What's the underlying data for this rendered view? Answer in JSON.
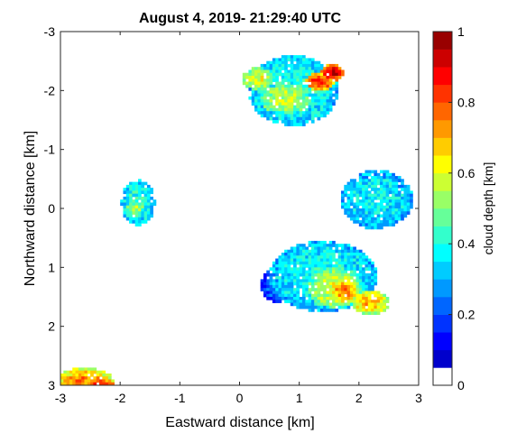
{
  "chart_data": {
    "type": "heatmap",
    "title": "August 4, 2019- 21:29:40 UTC",
    "xlabel": "Eastward distance [km]",
    "ylabel": "Northward distance [km]",
    "xlim": [
      -3,
      3
    ],
    "ylim": [
      -3,
      3
    ],
    "y_axis_reversed": true,
    "grid": false,
    "x_ticks": [
      "-3",
      "-2",
      "-1",
      "0",
      "1",
      "2",
      "3"
    ],
    "y_ticks": [
      "-3",
      "-2",
      "-1",
      "0",
      "1",
      "2",
      "3"
    ],
    "x_tick_values": [
      -3,
      -2,
      -1,
      0,
      1,
      2,
      3
    ],
    "y_tick_values": [
      -3,
      -2,
      -1,
      0,
      1,
      2,
      3
    ],
    "colorbar": {
      "label": "cloud depth [km]",
      "min": 0,
      "max": 1,
      "ticks": [
        "0",
        "0.2",
        "0.4",
        "0.6",
        "0.8",
        "1"
      ],
      "tick_values": [
        0,
        0.2,
        0.4,
        0.6,
        0.8,
        1
      ],
      "levels": 20,
      "colormap": "jet",
      "zero_color": "#ffffff"
    },
    "cloud_cells": [
      {
        "x": 0.9,
        "y": -2.0,
        "rx": 0.75,
        "ry": 0.6,
        "depth": 0.42
      },
      {
        "x": 0.75,
        "y": -1.85,
        "rx": 0.4,
        "ry": 0.25,
        "depth": 0.58
      },
      {
        "x": 0.3,
        "y": -2.2,
        "rx": 0.25,
        "ry": 0.2,
        "depth": 0.6
      },
      {
        "x": 1.35,
        "y": -2.15,
        "rx": 0.25,
        "ry": 0.15,
        "depth": 0.85
      },
      {
        "x": 1.55,
        "y": -2.3,
        "rx": 0.18,
        "ry": 0.14,
        "depth": 0.95
      },
      {
        "x": -1.7,
        "y": -0.1,
        "rx": 0.28,
        "ry": 0.38,
        "depth": 0.42
      },
      {
        "x": -1.75,
        "y": 0.0,
        "rx": 0.15,
        "ry": 0.12,
        "depth": 0.55
      },
      {
        "x": 2.3,
        "y": -0.15,
        "rx": 0.6,
        "ry": 0.5,
        "depth": 0.38
      },
      {
        "x": 1.4,
        "y": 1.15,
        "rx": 0.9,
        "ry": 0.6,
        "depth": 0.4
      },
      {
        "x": 1.6,
        "y": 1.35,
        "rx": 0.45,
        "ry": 0.35,
        "depth": 0.6
      },
      {
        "x": 1.75,
        "y": 1.4,
        "rx": 0.25,
        "ry": 0.2,
        "depth": 0.75
      },
      {
        "x": 2.2,
        "y": 1.6,
        "rx": 0.3,
        "ry": 0.2,
        "depth": 0.7
      },
      {
        "x": 0.7,
        "y": 1.3,
        "rx": 0.35,
        "ry": 0.3,
        "depth": 0.22
      },
      {
        "x": -2.6,
        "y": 2.95,
        "rx": 0.5,
        "ry": 0.25,
        "depth": 0.75
      },
      {
        "x": -2.3,
        "y": 3.0,
        "rx": 0.2,
        "ry": 0.1,
        "depth": 0.9
      }
    ]
  }
}
